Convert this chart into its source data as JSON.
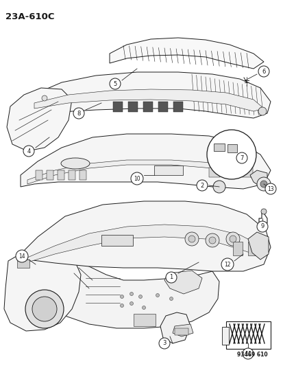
{
  "diagram_id": "23A-610C",
  "background_color": "#ffffff",
  "line_color": "#1a1a1a",
  "figure_width": 4.14,
  "figure_height": 5.33,
  "dpi": 100,
  "catalog_number": "93469 610",
  "title": "23A-610C"
}
